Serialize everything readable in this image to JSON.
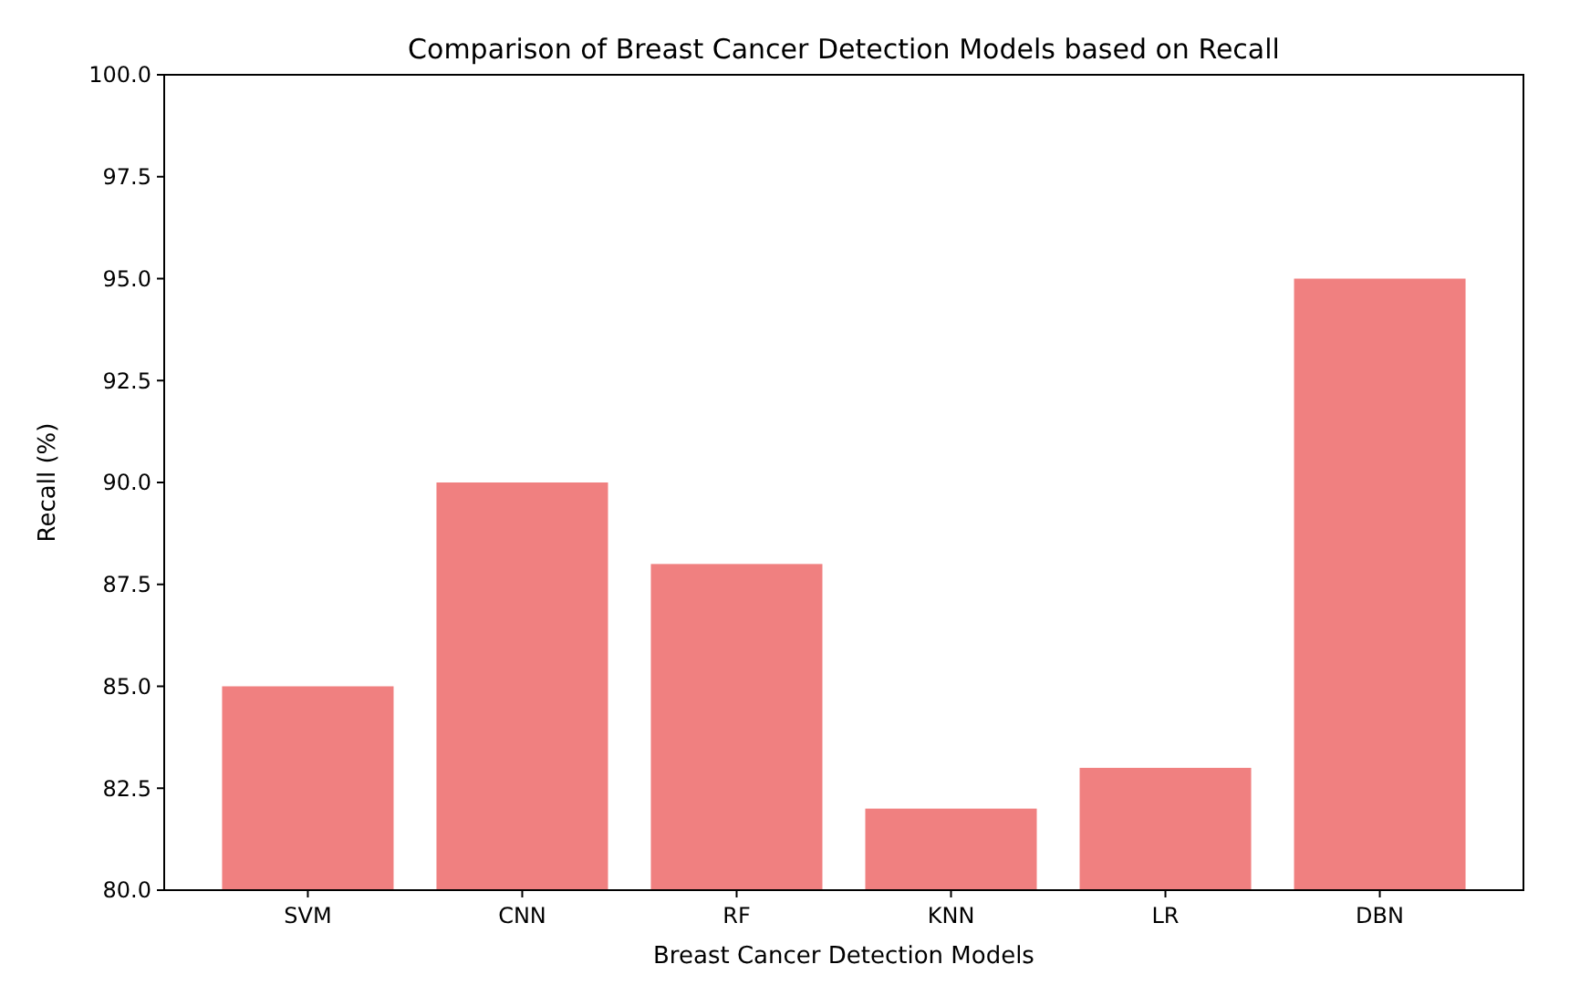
{
  "chart_data": {
    "type": "bar",
    "title": "Comparison of Breast Cancer Detection Models based on Recall",
    "xlabel": "Breast Cancer Detection Models",
    "ylabel": "Recall (%)",
    "categories": [
      "SVM",
      "CNN",
      "RF",
      "KNN",
      "LR",
      "DBN"
    ],
    "values": [
      85,
      90,
      88,
      82,
      83,
      95
    ],
    "color": "#f08080",
    "ylim": [
      80,
      100
    ],
    "yticks": [
      {
        "value": 80,
        "label": "80.0"
      },
      {
        "value": 82.5,
        "label": "82.5"
      },
      {
        "value": 85,
        "label": "85.0"
      },
      {
        "value": 87.5,
        "label": "87.5"
      },
      {
        "value": 90,
        "label": "90.0"
      },
      {
        "value": 92.5,
        "label": "92.5"
      },
      {
        "value": 95,
        "label": "95.0"
      },
      {
        "value": 97.5,
        "label": "97.5"
      },
      {
        "value": 100,
        "label": "100.0"
      }
    ],
    "grid": false
  }
}
